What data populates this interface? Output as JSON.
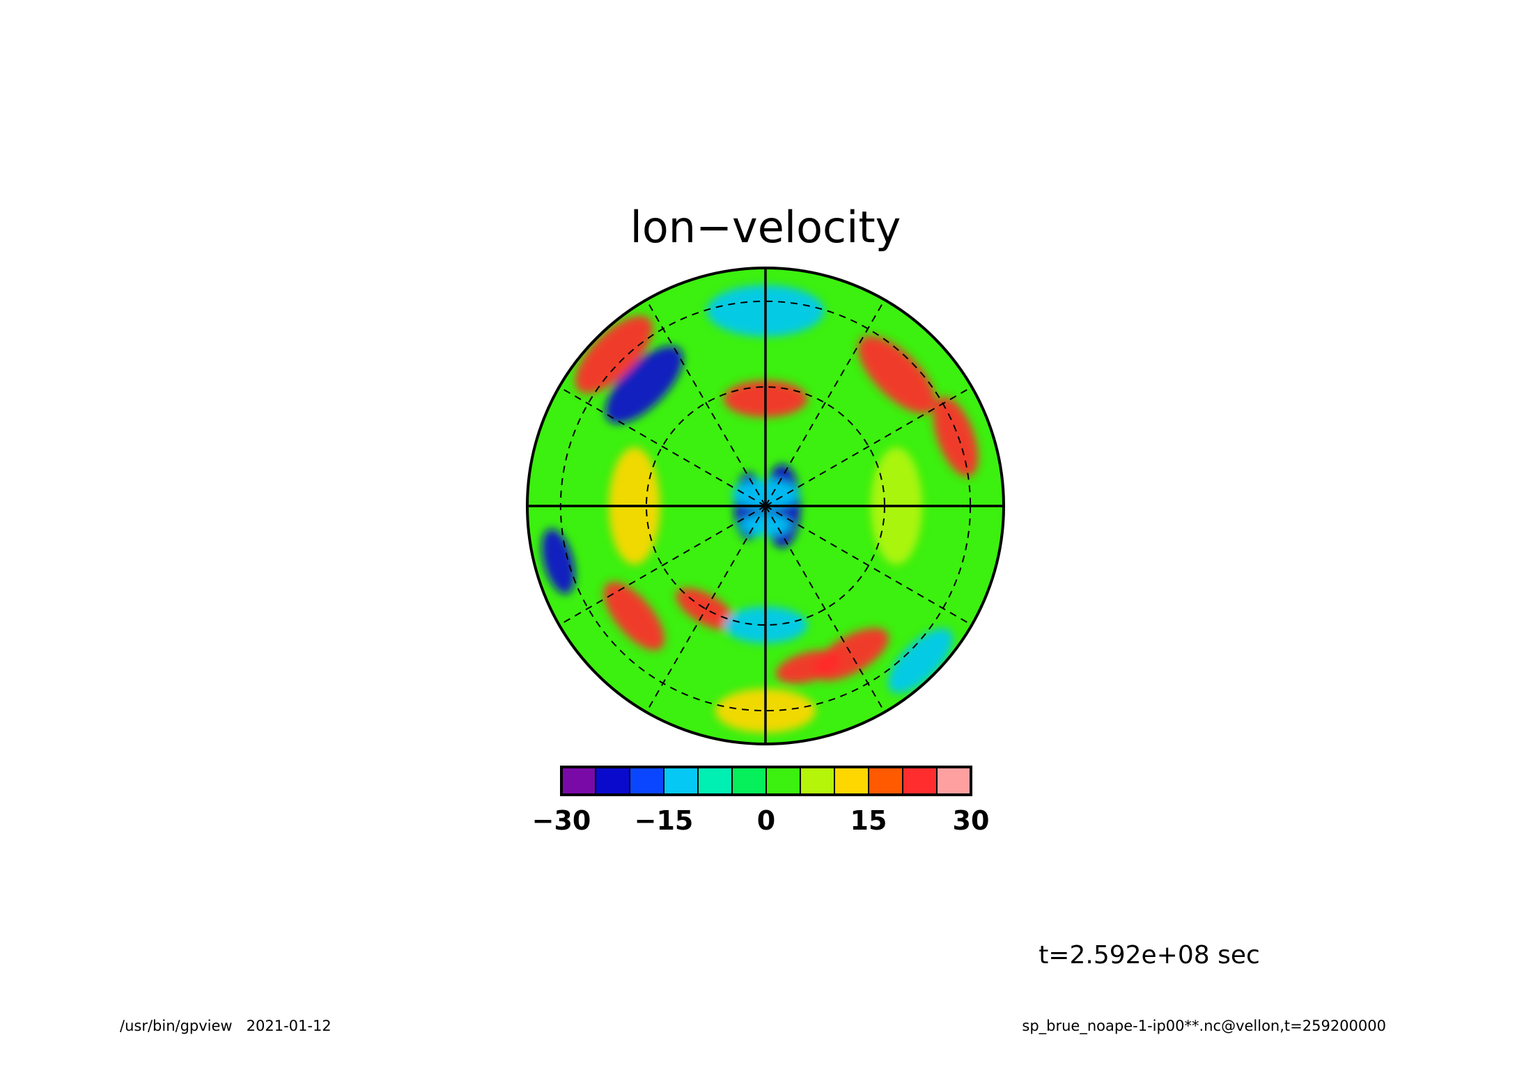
{
  "chart_data": {
    "type": "heatmap",
    "projection": "polar-stereographic",
    "title": "lon−velocity",
    "colorbar": {
      "levels": [
        -30,
        -25,
        -20,
        -15,
        -10,
        -5,
        0,
        5,
        10,
        15,
        20,
        25,
        30
      ],
      "colors": [
        "#7a0aa8",
        "#0a0acd",
        "#0a46ff",
        "#05c8f5",
        "#00f0b4",
        "#05f05a",
        "#3cf00f",
        "#b4f50a",
        "#ffd700",
        "#ff5a00",
        "#ff2d2d",
        "#ffa0a0"
      ],
      "tick_values": [
        -30,
        -15,
        0,
        15,
        30
      ],
      "tick_labels": [
        "−30",
        "−15",
        "0",
        "15",
        "30"
      ]
    },
    "field_features": [
      {
        "lon_deg": 180,
        "colat_frac": 0.07,
        "value": -25,
        "extent": 0.04
      },
      {
        "lon_deg": 0,
        "colat_frac": 0.07,
        "value": -25,
        "extent": 0.05
      },
      {
        "lon_deg": 90,
        "colat_frac": 0.05,
        "value": -12,
        "extent": 0.04
      },
      {
        "lon_deg": 270,
        "colat_frac": 0.08,
        "value": -12,
        "extent": 0.03
      },
      {
        "lon_deg": 90,
        "colat_frac": 0.45,
        "value": 22,
        "extent": 0.05
      },
      {
        "lon_deg": 135,
        "colat_frac": 0.72,
        "value": -22,
        "extent": 0.06
      },
      {
        "lon_deg": 45,
        "colat_frac": 0.78,
        "value": 22,
        "extent": 0.06
      },
      {
        "lon_deg": 20,
        "colat_frac": 0.85,
        "value": 24,
        "extent": 0.05
      },
      {
        "lon_deg": 135,
        "colat_frac": 0.9,
        "value": 24,
        "extent": 0.06
      },
      {
        "lon_deg": 300,
        "colat_frac": 0.72,
        "value": 24,
        "extent": 0.05
      },
      {
        "lon_deg": 285,
        "colat_frac": 0.7,
        "value": 24,
        "extent": 0.04
      },
      {
        "lon_deg": 240,
        "colat_frac": 0.5,
        "value": 20,
        "extent": 0.04
      },
      {
        "lon_deg": 220,
        "colat_frac": 0.72,
        "value": 22,
        "extent": 0.05
      },
      {
        "lon_deg": 195,
        "colat_frac": 0.9,
        "value": -22,
        "extent": 0.04
      },
      {
        "lon_deg": 270,
        "colat_frac": 0.5,
        "value": -12,
        "extent": 0.05
      },
      {
        "lon_deg": 180,
        "colat_frac": 0.55,
        "value": 10,
        "extent": 0.07
      },
      {
        "lon_deg": 0,
        "colat_frac": 0.55,
        "value": 9,
        "extent": 0.07
      },
      {
        "lon_deg": 315,
        "colat_frac": 0.92,
        "value": -14,
        "extent": 0.05
      },
      {
        "lon_deg": 90,
        "colat_frac": 0.82,
        "value": -12,
        "extent": 0.07
      },
      {
        "lon_deg": 270,
        "colat_frac": 0.86,
        "value": 10,
        "extent": 0.06
      }
    ],
    "graticule": {
      "meridians_deg": [
        0,
        30,
        60,
        90,
        120,
        150,
        180,
        210,
        240,
        270,
        300,
        330
      ],
      "solid_meridians_deg": [
        0,
        90,
        180,
        270
      ],
      "parallel_fracs": [
        0.5,
        0.86
      ]
    },
    "time_label": "t=2.592e+08 sec"
  },
  "footer": {
    "left": "/usr/bin/gpview   2021-01-12",
    "right": "sp_brue_noape-1-ip00**.nc@vellon,t=259200000"
  }
}
